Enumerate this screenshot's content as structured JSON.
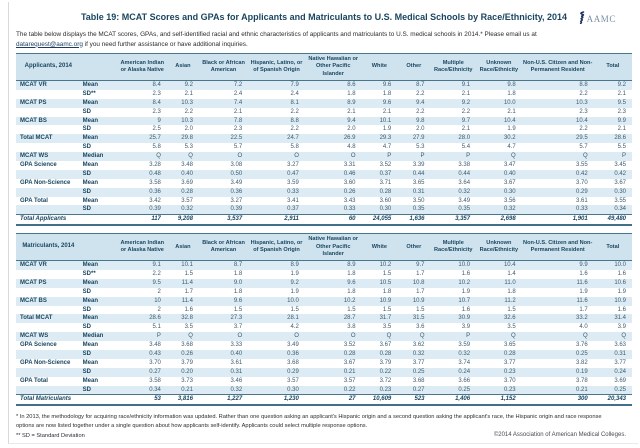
{
  "page": {
    "title": "Table 19: MCAT Scores and GPAs for Applicants and Matriculants to U.S. Medical Schools by Race/Ethnicity, 2014",
    "intro_before_link": "The table below displays the MCAT scores, GPAs, and self-identified racial and ethnic characteristics of applicants and matriculants to U.S. medical schools in 2014.* Please email us at ",
    "intro_link": "datarequest@aamc.org",
    "intro_after_link": " if you need further assistance or have additional inquiries.",
    "footnote1": "* In 2013, the methodology for acquiring race/ethnicity information was updated. Rather than one question asking an applicant's Hispanic origin and a second question asking the applicant's race, the Hispanic origin and race response options are now listed together under a single question about how applicants self-identify. Applicants could select multiple response options.",
    "footnote2": "** SD = Standard Deviation",
    "copyright": "©2014 Association of American Medical Colleges.",
    "logo_text": "AAMC"
  },
  "colors": {
    "accent_navy": "#1b4660",
    "header_bg": "#cfe3ee",
    "stripe_bg": "#ddecf4",
    "link_color": "#1b3b5f",
    "logo_mark": "#1e2f63"
  },
  "columns": [
    "American Indian or Alaska Native",
    "Asian",
    "Black or African American",
    "Hispanic, Latino, or of Spanish Origin",
    "Native Hawaiian or Other Pacific Islander",
    "White",
    "Other",
    "Multiple Race/Ethnicity",
    "Unknown Race/Ethnicity",
    "Non-U.S. Citizen and Non-Permanent Resident",
    "Total"
  ],
  "tables": [
    {
      "name": "applicants-table",
      "label": "Applicants, 2014",
      "total_label": "Total Applicants",
      "rows": [
        {
          "group": "MCAT VR",
          "stat": "Mean",
          "values": [
            "8.4",
            "9.2",
            "7.2",
            "7.9",
            "8.6",
            "9.6",
            "8.7",
            "9.1",
            "9.8",
            "8.8",
            "9.2"
          ]
        },
        {
          "group": "",
          "stat": "SD**",
          "values": [
            "2.3",
            "2.1",
            "2.4",
            "2.4",
            "1.8",
            "1.8",
            "2.2",
            "2.1",
            "1.8",
            "2.2",
            "2.1"
          ]
        },
        {
          "group": "MCAT PS",
          "stat": "Mean",
          "values": [
            "8.4",
            "10.3",
            "7.4",
            "8.1",
            "8.9",
            "9.6",
            "9.4",
            "9.2",
            "10.0",
            "10.3",
            "9.5"
          ]
        },
        {
          "group": "",
          "stat": "SD",
          "values": [
            "2.3",
            "2.2",
            "2.1",
            "2.2",
            "2.1",
            "2.1",
            "2.2",
            "2.2",
            "2.1",
            "2.3",
            "2.3"
          ]
        },
        {
          "group": "MCAT BS",
          "stat": "Mean",
          "values": [
            "9",
            "10.3",
            "7.8",
            "8.8",
            "9.4",
            "10.1",
            "9.8",
            "9.7",
            "10.4",
            "10.4",
            "9.9"
          ]
        },
        {
          "group": "",
          "stat": "SD",
          "values": [
            "2.5",
            "2.0",
            "2.3",
            "2.2",
            "2.0",
            "1.9",
            "2.0",
            "2.1",
            "1.9",
            "2.2",
            "2.1"
          ]
        },
        {
          "group": "Total MCAT",
          "stat": "Mean",
          "values": [
            "25.7",
            "29.8",
            "22.5",
            "24.7",
            "26.9",
            "29.3",
            "27.9",
            "28.0",
            "30.2",
            "29.5",
            "28.6"
          ]
        },
        {
          "group": "",
          "stat": "SD",
          "values": [
            "5.8",
            "5.3",
            "5.7",
            "5.8",
            "4.8",
            "4.7",
            "5.3",
            "5.4",
            "4.7",
            "5.7",
            "5.5"
          ]
        },
        {
          "group": "MCAT WS",
          "stat": "Median",
          "values": [
            "Q",
            "Q",
            "O",
            "O",
            "O",
            "P",
            "P",
            "P",
            "Q",
            "Q",
            "P"
          ]
        },
        {
          "group": "GPA Science",
          "stat": "Mean",
          "values": [
            "3.28",
            "3.48",
            "3.08",
            "3.27",
            "3.31",
            "3.52",
            "3.39",
            "3.38",
            "3.47",
            "3.55",
            "3.45"
          ]
        },
        {
          "group": "",
          "stat": "SD",
          "values": [
            "0.48",
            "0.40",
            "0.50",
            "0.47",
            "0.46",
            "0.37",
            "0.44",
            "0.44",
            "0.40",
            "0.42",
            "0.42"
          ]
        },
        {
          "group": "GPA Non-Science",
          "stat": "Mean",
          "values": [
            "3.58",
            "3.69",
            "3.49",
            "3.59",
            "3.60",
            "3.71",
            "3.65",
            "3.64",
            "3.67",
            "3.70",
            "3.67"
          ]
        },
        {
          "group": "",
          "stat": "SD",
          "values": [
            "0.36",
            "0.28",
            "0.36",
            "0.33",
            "0.26",
            "0.28",
            "0.31",
            "0.32",
            "0.30",
            "0.29",
            "0.30"
          ]
        },
        {
          "group": "GPA Total",
          "stat": "Mean",
          "values": [
            "3.42",
            "3.57",
            "3.27",
            "3.41",
            "3.43",
            "3.60",
            "3.50",
            "3.49",
            "3.56",
            "3.61",
            "3.55"
          ]
        },
        {
          "group": "",
          "stat": "SD",
          "values": [
            "0.39",
            "0.32",
            "0.39",
            "0.37",
            "0.33",
            "0.30",
            "0.35",
            "0.35",
            "0.32",
            "0.33",
            "0.34"
          ]
        }
      ],
      "total_values": [
        "117",
        "9,208",
        "3,537",
        "2,911",
        "60",
        "24,055",
        "1,636",
        "3,357",
        "2,698",
        "1,901",
        "49,480"
      ]
    },
    {
      "name": "matriculants-table",
      "label": "Matriculants, 2014",
      "total_label": "Total Matriculants",
      "rows": [
        {
          "group": "MCAT VR",
          "stat": "Mean",
          "values": [
            "9.1",
            "10.1",
            "8.7",
            "8.9",
            "8.9",
            "10.2",
            "9.7",
            "10.0",
            "10.4",
            "9.9",
            "10.0"
          ]
        },
        {
          "group": "",
          "stat": "SD**",
          "values": [
            "2.2",
            "1.5",
            "1.8",
            "1.9",
            "1.8",
            "1.5",
            "1.7",
            "1.6",
            "1.4",
            "1.6",
            "1.6"
          ]
        },
        {
          "group": "MCAT PS",
          "stat": "Mean",
          "values": [
            "9.5",
            "11.4",
            "9.0",
            "9.2",
            "9.6",
            "10.5",
            "10.8",
            "10.2",
            "11.0",
            "11.6",
            "10.6"
          ]
        },
        {
          "group": "",
          "stat": "SD",
          "values": [
            "2",
            "1.7",
            "1.8",
            "1.9",
            "1.8",
            "1.8",
            "1.7",
            "1.9",
            "1.8",
            "1.9",
            "1.9"
          ]
        },
        {
          "group": "MCAT BS",
          "stat": "Mean",
          "values": [
            "10",
            "11.4",
            "9.6",
            "10.0",
            "10.2",
            "10.9",
            "10.9",
            "10.7",
            "11.2",
            "11.6",
            "10.9"
          ]
        },
        {
          "group": "",
          "stat": "SD",
          "values": [
            "2",
            "1.6",
            "1.5",
            "1.5",
            "1.5",
            "1.5",
            "1.5",
            "1.6",
            "1.5",
            "1.7",
            "1.6"
          ]
        },
        {
          "group": "Total MCAT",
          "stat": "Mean",
          "values": [
            "28.6",
            "32.8",
            "27.3",
            "28.1",
            "28.7",
            "31.7",
            "31.5",
            "30.9",
            "32.6",
            "33.2",
            "31.4"
          ]
        },
        {
          "group": "",
          "stat": "SD",
          "values": [
            "5.1",
            "3.5",
            "3.7",
            "4.2",
            "3.8",
            "3.5",
            "3.6",
            "3.9",
            "3.5",
            "4.0",
            "3.9"
          ]
        },
        {
          "group": "MCAT WS",
          "stat": "Median",
          "values": [
            "P",
            "Q",
            "O",
            "O",
            "O",
            "Q",
            "Q",
            "P",
            "Q",
            "Q",
            "Q"
          ]
        },
        {
          "group": "GPA Science",
          "stat": "Mean",
          "values": [
            "3.48",
            "3.68",
            "3.33",
            "3.49",
            "3.52",
            "3.67",
            "3.62",
            "3.59",
            "3.65",
            "3.76",
            "3.63"
          ]
        },
        {
          "group": "",
          "stat": "SD",
          "values": [
            "0.43",
            "0.26",
            "0.40",
            "0.36",
            "0.28",
            "0.28",
            "0.32",
            "0.32",
            "0.28",
            "0.25",
            "0.31"
          ]
        },
        {
          "group": "GPA Non-Science",
          "stat": "Mean",
          "values": [
            "3.70",
            "3.79",
            "3.61",
            "3.68",
            "3.67",
            "3.79",
            "3.77",
            "3.74",
            "3.77",
            "3.82",
            "3.77"
          ]
        },
        {
          "group": "",
          "stat": "SD",
          "values": [
            "0.27",
            "0.20",
            "0.31",
            "0.29",
            "0.21",
            "0.22",
            "0.25",
            "0.24",
            "0.23",
            "0.19",
            "0.24"
          ]
        },
        {
          "group": "GPA Total",
          "stat": "Mean",
          "values": [
            "3.58",
            "3.73",
            "3.46",
            "3.57",
            "3.57",
            "3.72",
            "3.68",
            "3.66",
            "3.70",
            "3.78",
            "3.69"
          ]
        },
        {
          "group": "",
          "stat": "SD",
          "values": [
            "0.34",
            "0.21",
            "0.32",
            "0.30",
            "0.22",
            "0.23",
            "0.27",
            "0.25",
            "0.23",
            "0.21",
            "0.25"
          ]
        }
      ],
      "total_values": [
        "53",
        "3,816",
        "1,227",
        "1,230",
        "27",
        "10,609",
        "523",
        "1,406",
        "1,152",
        "300",
        "20,343"
      ]
    }
  ]
}
